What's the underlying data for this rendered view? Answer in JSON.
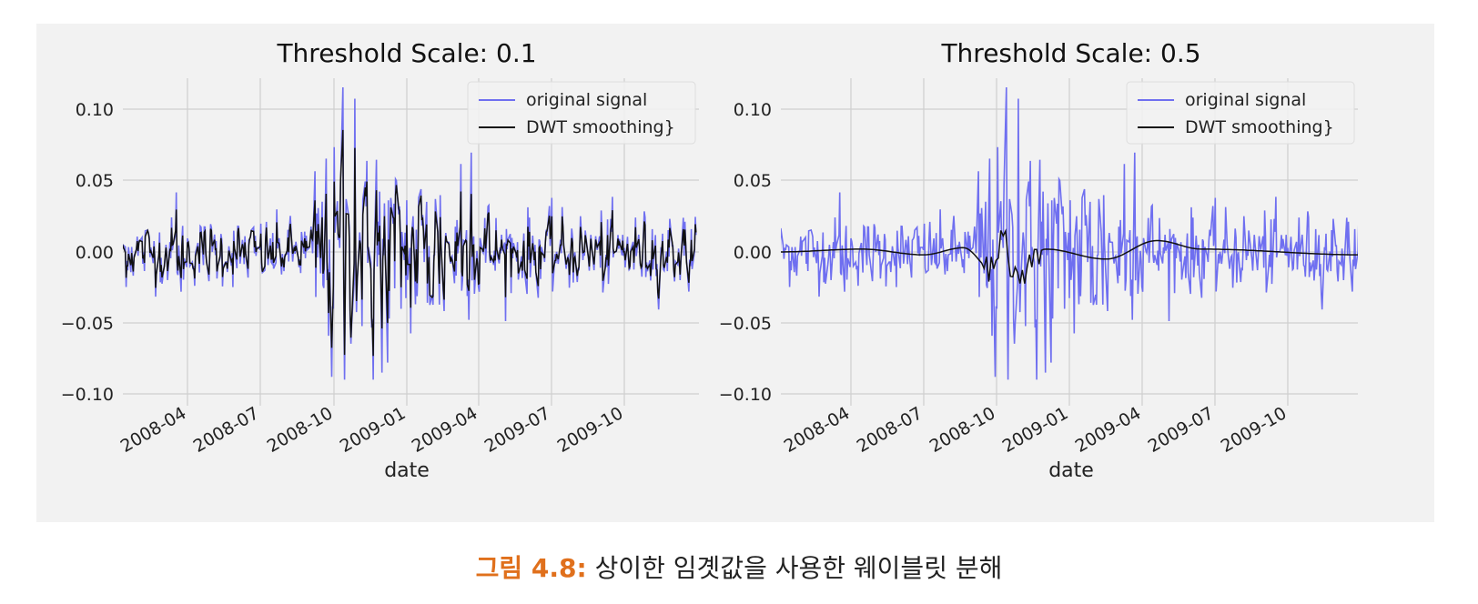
{
  "chart_data": [
    {
      "type": "line",
      "title": "Threshold Scale: 0.1",
      "xlabel": "date",
      "ylabel": "",
      "x_range": [
        "2008-01-01",
        "2009-12-31"
      ],
      "ylim": [
        -0.11,
        0.125
      ],
      "yticks": [
        0.1,
        0.05,
        0.0,
        -0.05,
        -0.1
      ],
      "ytick_labels": [
        "0.10",
        "0.05",
        "0.00",
        "−0.05",
        "−0.10"
      ],
      "xticks": [
        "2008-04-01",
        "2008-07-01",
        "2008-10-01",
        "2009-01-01",
        "2009-04-01",
        "2009-07-01",
        "2009-10-01"
      ],
      "xtick_labels": [
        "2008-04",
        "2008-07",
        "2008-10",
        "2009-01",
        "2009-04",
        "2009-07",
        "2009-10"
      ],
      "grid": true,
      "legend_position": "top-right",
      "series": [
        {
          "name": "original signal",
          "color": "#6f6ff0",
          "note": "daily returns; peaks ~0.115 and troughs ~-0.09 around 2008-10",
          "keypoints": [
            [
              "2008-01-02",
              0.012
            ],
            [
              "2008-03-17",
              0.042
            ],
            [
              "2008-09-29",
              -0.088
            ],
            [
              "2008-10-13",
              0.116
            ],
            [
              "2008-10-28",
              0.108
            ],
            [
              "2008-11-20",
              -0.09
            ],
            [
              "2009-03-23",
              0.07
            ],
            [
              "2009-12-31",
              0.0
            ]
          ]
        },
        {
          "name": "DWT smoothing}",
          "color": "#111111",
          "note": "close tracking of signal at low threshold",
          "keypoints": [
            [
              "2008-10-13",
              0.1
            ],
            [
              "2008-11-20",
              -0.075
            ],
            [
              "2009-03-23",
              0.065
            ]
          ]
        }
      ]
    },
    {
      "type": "line",
      "title": "Threshold Scale: 0.5",
      "xlabel": "date",
      "ylabel": "",
      "x_range": [
        "2008-01-01",
        "2009-12-31"
      ],
      "ylim": [
        -0.11,
        0.125
      ],
      "yticks": [
        0.1,
        0.05,
        0.0,
        -0.05,
        -0.1
      ],
      "ytick_labels": [
        "0.10",
        "0.05",
        "0.00",
        "−0.05",
        "−0.10"
      ],
      "xticks": [
        "2008-04-01",
        "2008-07-01",
        "2008-10-01",
        "2009-01-01",
        "2009-04-01",
        "2009-07-01",
        "2009-10-01"
      ],
      "xtick_labels": [
        "2008-04",
        "2008-07",
        "2008-10",
        "2009-01",
        "2009-04",
        "2009-07",
        "2009-10"
      ],
      "grid": true,
      "legend_position": "top-right",
      "series": [
        {
          "name": "original signal",
          "color": "#6f6ff0",
          "note": "same signal as left panel",
          "keypoints": [
            [
              "2008-10-13",
              0.116
            ],
            [
              "2008-11-20",
              -0.09
            ],
            [
              "2009-03-23",
              0.07
            ]
          ]
        },
        {
          "name": "DWT smoothing}",
          "color": "#111111",
          "note": "heavily smoothed, near zero",
          "keypoints": [
            [
              "2008-01-01",
              0.0
            ],
            [
              "2008-04-15",
              0.002
            ],
            [
              "2008-07-01",
              -0.002
            ],
            [
              "2008-08-20",
              0.003
            ],
            [
              "2008-09-25",
              -0.012
            ],
            [
              "2008-10-10",
              0.02
            ],
            [
              "2008-10-22",
              -0.02
            ],
            [
              "2008-12-01",
              0.002
            ],
            [
              "2009-02-15",
              -0.005
            ],
            [
              "2009-04-20",
              0.008
            ],
            [
              "2009-06-15",
              0.002
            ],
            [
              "2009-12-31",
              -0.002
            ]
          ]
        }
      ]
    }
  ],
  "caption": {
    "label": "그림 4.8:",
    "text": "상이한 임곗값을 사용한 웨이블릿 분해"
  }
}
